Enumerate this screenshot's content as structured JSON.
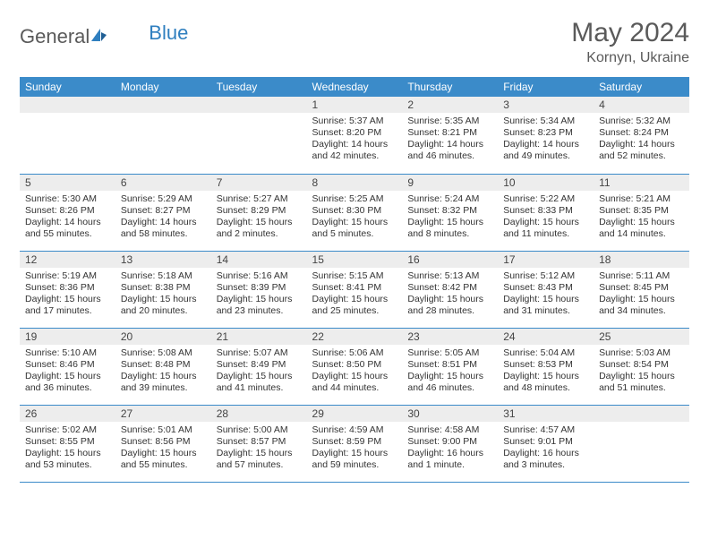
{
  "brand": {
    "name_gray": "General",
    "name_blue": "Blue"
  },
  "title": "May 2024",
  "location": "Kornyn, Ukraine",
  "colors": {
    "header_bg": "#3b8bc9",
    "header_text": "#ffffff",
    "daynum_bg": "#ededed",
    "text": "#333333",
    "rule": "#3b8bc9",
    "brand_gray": "#5a5a5a",
    "brand_blue": "#2f7fbf"
  },
  "weekdays": [
    "Sunday",
    "Monday",
    "Tuesday",
    "Wednesday",
    "Thursday",
    "Friday",
    "Saturday"
  ],
  "weeks": [
    [
      null,
      null,
      null,
      {
        "n": "1",
        "sr": "5:37 AM",
        "ss": "8:20 PM",
        "dl": "14 hours and 42 minutes."
      },
      {
        "n": "2",
        "sr": "5:35 AM",
        "ss": "8:21 PM",
        "dl": "14 hours and 46 minutes."
      },
      {
        "n": "3",
        "sr": "5:34 AM",
        "ss": "8:23 PM",
        "dl": "14 hours and 49 minutes."
      },
      {
        "n": "4",
        "sr": "5:32 AM",
        "ss": "8:24 PM",
        "dl": "14 hours and 52 minutes."
      }
    ],
    [
      {
        "n": "5",
        "sr": "5:30 AM",
        "ss": "8:26 PM",
        "dl": "14 hours and 55 minutes."
      },
      {
        "n": "6",
        "sr": "5:29 AM",
        "ss": "8:27 PM",
        "dl": "14 hours and 58 minutes."
      },
      {
        "n": "7",
        "sr": "5:27 AM",
        "ss": "8:29 PM",
        "dl": "15 hours and 2 minutes."
      },
      {
        "n": "8",
        "sr": "5:25 AM",
        "ss": "8:30 PM",
        "dl": "15 hours and 5 minutes."
      },
      {
        "n": "9",
        "sr": "5:24 AM",
        "ss": "8:32 PM",
        "dl": "15 hours and 8 minutes."
      },
      {
        "n": "10",
        "sr": "5:22 AM",
        "ss": "8:33 PM",
        "dl": "15 hours and 11 minutes."
      },
      {
        "n": "11",
        "sr": "5:21 AM",
        "ss": "8:35 PM",
        "dl": "15 hours and 14 minutes."
      }
    ],
    [
      {
        "n": "12",
        "sr": "5:19 AM",
        "ss": "8:36 PM",
        "dl": "15 hours and 17 minutes."
      },
      {
        "n": "13",
        "sr": "5:18 AM",
        "ss": "8:38 PM",
        "dl": "15 hours and 20 minutes."
      },
      {
        "n": "14",
        "sr": "5:16 AM",
        "ss": "8:39 PM",
        "dl": "15 hours and 23 minutes."
      },
      {
        "n": "15",
        "sr": "5:15 AM",
        "ss": "8:41 PM",
        "dl": "15 hours and 25 minutes."
      },
      {
        "n": "16",
        "sr": "5:13 AM",
        "ss": "8:42 PM",
        "dl": "15 hours and 28 minutes."
      },
      {
        "n": "17",
        "sr": "5:12 AM",
        "ss": "8:43 PM",
        "dl": "15 hours and 31 minutes."
      },
      {
        "n": "18",
        "sr": "5:11 AM",
        "ss": "8:45 PM",
        "dl": "15 hours and 34 minutes."
      }
    ],
    [
      {
        "n": "19",
        "sr": "5:10 AM",
        "ss": "8:46 PM",
        "dl": "15 hours and 36 minutes."
      },
      {
        "n": "20",
        "sr": "5:08 AM",
        "ss": "8:48 PM",
        "dl": "15 hours and 39 minutes."
      },
      {
        "n": "21",
        "sr": "5:07 AM",
        "ss": "8:49 PM",
        "dl": "15 hours and 41 minutes."
      },
      {
        "n": "22",
        "sr": "5:06 AM",
        "ss": "8:50 PM",
        "dl": "15 hours and 44 minutes."
      },
      {
        "n": "23",
        "sr": "5:05 AM",
        "ss": "8:51 PM",
        "dl": "15 hours and 46 minutes."
      },
      {
        "n": "24",
        "sr": "5:04 AM",
        "ss": "8:53 PM",
        "dl": "15 hours and 48 minutes."
      },
      {
        "n": "25",
        "sr": "5:03 AM",
        "ss": "8:54 PM",
        "dl": "15 hours and 51 minutes."
      }
    ],
    [
      {
        "n": "26",
        "sr": "5:02 AM",
        "ss": "8:55 PM",
        "dl": "15 hours and 53 minutes."
      },
      {
        "n": "27",
        "sr": "5:01 AM",
        "ss": "8:56 PM",
        "dl": "15 hours and 55 minutes."
      },
      {
        "n": "28",
        "sr": "5:00 AM",
        "ss": "8:57 PM",
        "dl": "15 hours and 57 minutes."
      },
      {
        "n": "29",
        "sr": "4:59 AM",
        "ss": "8:59 PM",
        "dl": "15 hours and 59 minutes."
      },
      {
        "n": "30",
        "sr": "4:58 AM",
        "ss": "9:00 PM",
        "dl": "16 hours and 1 minute."
      },
      {
        "n": "31",
        "sr": "4:57 AM",
        "ss": "9:01 PM",
        "dl": "16 hours and 3 minutes."
      },
      null
    ]
  ],
  "labels": {
    "sunrise": "Sunrise:",
    "sunset": "Sunset:",
    "daylight": "Daylight:"
  }
}
